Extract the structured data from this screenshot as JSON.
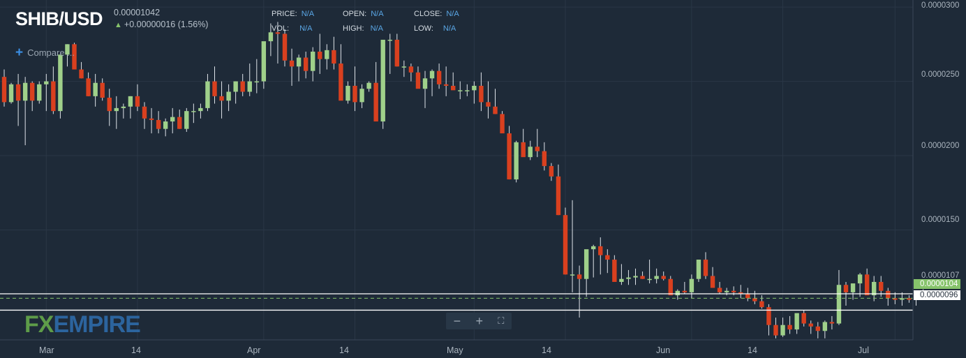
{
  "header": {
    "symbol": "SHIB/USD",
    "price": "0.00001042",
    "change": "+0.00000016 (1.56%)",
    "change_arrow": "up-arrow-icon"
  },
  "ohlc": {
    "price_label": "PRICE:",
    "price_value": "N/A",
    "open_label": "OPEN:",
    "open_value": "N/A",
    "close_label": "CLOSE:",
    "close_value": "N/A",
    "vol_label": "VOL:",
    "vol_value": "N/A",
    "high_label": "HIGH:",
    "high_value": "N/A",
    "low_label": "LOW:",
    "low_value": "N/A"
  },
  "compare_label": "Compare ...",
  "logo": {
    "fx": "FX",
    "empire": "EMPIRE"
  },
  "zoom": {
    "minus": "−",
    "plus": "+",
    "fit": "⛶"
  },
  "badges": {
    "last_price": "0.0000104",
    "support": "0.0000096"
  },
  "colors": {
    "background": "#1e2a38",
    "up": "#9fd08a",
    "down": "#d9401f",
    "wick": "#dfe4ea",
    "grid": "#2a3746",
    "accent_blue": "#5aa7e6"
  },
  "chart_data": {
    "type": "candlestick",
    "title": "SHIB/USD",
    "y_ticks": [
      "0.0000300",
      "0.0000250",
      "0.0000200",
      "0.0000150"
    ],
    "y_tick_values": [
      3e-05,
      2.5e-05,
      2e-05,
      1.5e-05
    ],
    "x_ticks": [
      "Mar",
      "14",
      "Apr",
      "14",
      "May",
      "14",
      "Jun",
      "14",
      "Jul"
    ],
    "x_tick_index": [
      6,
      19,
      37,
      50,
      67,
      80,
      98,
      111,
      127
    ],
    "ylim": [
      7.6e-06,
      3.01e-05
    ],
    "horizontal_lines": [
      {
        "label": "0.0000107",
        "value": 1.07e-05,
        "style": "solid"
      },
      {
        "label": "0.0000096",
        "value": 9.6e-06,
        "style": "solid"
      },
      {
        "label": "0.0000104",
        "value": 1.04e-05,
        "style": "dashed"
      }
    ],
    "candles_ohlc_e7": [
      [
        253,
        258,
        233,
        236
      ],
      [
        236,
        249,
        235,
        248
      ],
      [
        248,
        255,
        220,
        237
      ],
      [
        237,
        253,
        207,
        249
      ],
      [
        249,
        250,
        230,
        237
      ],
      [
        237,
        250,
        235,
        248
      ],
      [
        248,
        255,
        230,
        250
      ],
      [
        250,
        260,
        228,
        230
      ],
      [
        230,
        265,
        225,
        268
      ],
      [
        268,
        275,
        260,
        275
      ],
      [
        275,
        276,
        260,
        258
      ],
      [
        258,
        263,
        252,
        252
      ],
      [
        252,
        256,
        240,
        240
      ],
      [
        240,
        255,
        233,
        249
      ],
      [
        249,
        252,
        237,
        239
      ],
      [
        239,
        245,
        220,
        230
      ],
      [
        230,
        240,
        218,
        232
      ],
      [
        232,
        235,
        225,
        233
      ],
      [
        233,
        240,
        225,
        240
      ],
      [
        240,
        248,
        230,
        233
      ],
      [
        233,
        236,
        218,
        225
      ],
      [
        225,
        232,
        215,
        224
      ],
      [
        224,
        230,
        215,
        218
      ],
      [
        218,
        225,
        213,
        223
      ],
      [
        223,
        232,
        215,
        226
      ],
      [
        226,
        231,
        218,
        218
      ],
      [
        218,
        232,
        216,
        230
      ],
      [
        230,
        235,
        222,
        230
      ],
      [
        230,
        235,
        225,
        232
      ],
      [
        232,
        255,
        230,
        250
      ],
      [
        250,
        260,
        235,
        240
      ],
      [
        240,
        250,
        225,
        237
      ],
      [
        237,
        248,
        230,
        243
      ],
      [
        243,
        250,
        235,
        250
      ],
      [
        250,
        255,
        240,
        243
      ],
      [
        243,
        262,
        240,
        250
      ],
      [
        250,
        265,
        242,
        250
      ],
      [
        250,
        275,
        245,
        277
      ],
      [
        277,
        289,
        267,
        283
      ],
      [
        283,
        290,
        262,
        282
      ],
      [
        282,
        285,
        260,
        264
      ],
      [
        264,
        272,
        247,
        260
      ],
      [
        260,
        268,
        250,
        266
      ],
      [
        266,
        270,
        252,
        257
      ],
      [
        257,
        273,
        250,
        270
      ],
      [
        270,
        282,
        255,
        265
      ],
      [
        265,
        275,
        258,
        271
      ],
      [
        271,
        280,
        258,
        262
      ],
      [
        262,
        275,
        240,
        237
      ],
      [
        237,
        250,
        235,
        247
      ],
      [
        247,
        260,
        230,
        236
      ],
      [
        236,
        248,
        232,
        245
      ],
      [
        245,
        250,
        243,
        249
      ],
      [
        249,
        263,
        232,
        223
      ],
      [
        223,
        264,
        218,
        278
      ],
      [
        278,
        282,
        255,
        278
      ],
      [
        278,
        282,
        260,
        260
      ],
      [
        260,
        264,
        253,
        260
      ],
      [
        260,
        262,
        250,
        256
      ],
      [
        256,
        260,
        250,
        245
      ],
      [
        245,
        257,
        232,
        252
      ],
      [
        252,
        258,
        240,
        257
      ],
      [
        257,
        262,
        245,
        248
      ],
      [
        248,
        260,
        240,
        247
      ],
      [
        247,
        256,
        245,
        244
      ],
      [
        244,
        250,
        238,
        244
      ],
      [
        244,
        248,
        240,
        244
      ],
      [
        244,
        250,
        235,
        247
      ],
      [
        247,
        256,
        230,
        236
      ],
      [
        236,
        250,
        225,
        233
      ],
      [
        233,
        245,
        228,
        228
      ],
      [
        228,
        230,
        216,
        215
      ],
      [
        215,
        220,
        184,
        184
      ],
      [
        184,
        210,
        182,
        209
      ],
      [
        209,
        218,
        200,
        199
      ],
      [
        199,
        210,
        197,
        206
      ],
      [
        206,
        218,
        199,
        203
      ],
      [
        203,
        209,
        190,
        193
      ],
      [
        193,
        195,
        183,
        186
      ],
      [
        186,
        194,
        160,
        160
      ],
      [
        160,
        165,
        120,
        120
      ],
      [
        120,
        170,
        108,
        120
      ],
      [
        120,
        126,
        91,
        117
      ],
      [
        117,
        135,
        105,
        137
      ],
      [
        137,
        140,
        118,
        139
      ],
      [
        139,
        145,
        120,
        133
      ],
      [
        133,
        137,
        121,
        130
      ],
      [
        130,
        133,
        119,
        115
      ],
      [
        115,
        127,
        113,
        117
      ],
      [
        117,
        123,
        113,
        118
      ],
      [
        118,
        124,
        113,
        119
      ],
      [
        119,
        122,
        117,
        117
      ],
      [
        117,
        130,
        114,
        117
      ],
      [
        117,
        124,
        114,
        119
      ],
      [
        119,
        122,
        116,
        117
      ],
      [
        117,
        119,
        107,
        106
      ],
      [
        106,
        110,
        103,
        109
      ],
      [
        109,
        115,
        107,
        108
      ],
      [
        108,
        120,
        104,
        117
      ],
      [
        117,
        130,
        115,
        130
      ],
      [
        130,
        135,
        117,
        119
      ],
      [
        119,
        125,
        111,
        111
      ],
      [
        111,
        115,
        107,
        108
      ],
      [
        108,
        111,
        106,
        109
      ],
      [
        109,
        112,
        106,
        108
      ],
      [
        108,
        113,
        104,
        107
      ],
      [
        107,
        111,
        102,
        104
      ],
      [
        104,
        109,
        100,
        102
      ],
      [
        102,
        106,
        97,
        98
      ],
      [
        98,
        100,
        79,
        86
      ],
      [
        86,
        91,
        77,
        79
      ],
      [
        79,
        91,
        78,
        86
      ],
      [
        86,
        92,
        80,
        83
      ],
      [
        83,
        92,
        80,
        94
      ],
      [
        94,
        96,
        85,
        87
      ],
      [
        87,
        89,
        80,
        85
      ],
      [
        85,
        88,
        77,
        82
      ],
      [
        82,
        89,
        77,
        88
      ],
      [
        88,
        92,
        83,
        87
      ],
      [
        87,
        123,
        86,
        113
      ],
      [
        113,
        115,
        99,
        108
      ],
      [
        108,
        113,
        103,
        114
      ],
      [
        114,
        121,
        105,
        120
      ],
      [
        120,
        124,
        109,
        106
      ],
      [
        106,
        119,
        102,
        115
      ],
      [
        115,
        119,
        105,
        109
      ],
      [
        109,
        111,
        99,
        104
      ],
      [
        104,
        108,
        100,
        103
      ],
      [
        103,
        108,
        99,
        104
      ],
      [
        104,
        106,
        101,
        103
      ],
      [
        103,
        108,
        99,
        107
      ],
      [
        107,
        110,
        104,
        105
      ],
      [
        105,
        109,
        103,
        104
      ],
      [
        104,
        107,
        103,
        104
      ]
    ]
  }
}
